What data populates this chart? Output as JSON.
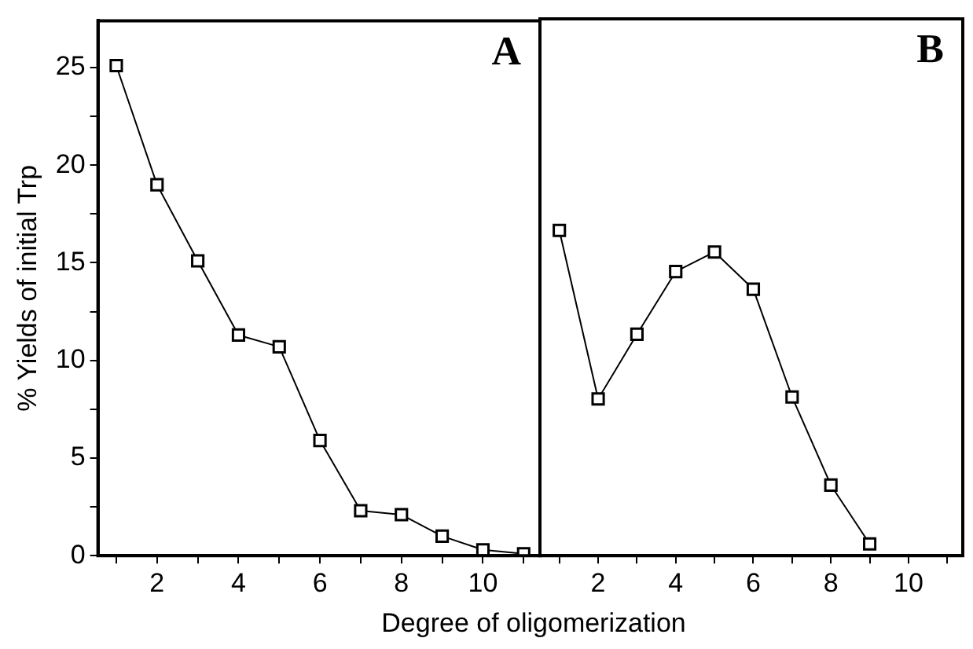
{
  "chart_data": [
    {
      "type": "line",
      "ylabel": "% Yields of initial Trp",
      "xlabel": "Degree of oligomerization",
      "annotations": [
        "A"
      ],
      "x": [
        1,
        2,
        3,
        4,
        5,
        6,
        7,
        8,
        9,
        10,
        11
      ],
      "series": [
        {
          "color": "#000000",
          "values": [
            25.1,
            19.0,
            15.1,
            11.3,
            10.7,
            5.9,
            2.3,
            2.1,
            1.0,
            0.3,
            0.1
          ]
        }
      ],
      "xlim": [
        0.55,
        11.4
      ],
      "xticks": [
        {
          "value": 1,
          "label": null
        },
        2,
        {
          "value": 3,
          "label": null
        },
        4,
        {
          "value": 5,
          "label": null
        },
        6,
        {
          "value": 7,
          "label": null
        },
        8,
        {
          "value": 9,
          "label": null
        },
        10,
        {
          "value": 11,
          "label": null
        }
      ],
      "ylim": [
        0,
        27.4
      ],
      "yticks": [
        0,
        {
          "value": 2.5,
          "label": null
        },
        5,
        {
          "value": 7.5,
          "label": null
        },
        10,
        {
          "value": 12.5,
          "label": null
        },
        15,
        {
          "value": 17.5,
          "label": null
        },
        20,
        {
          "value": 22.5,
          "label": null
        },
        25
      ],
      "marker": "square",
      "grid": false,
      "legend": false
    },
    {
      "type": "line",
      "annotations": [
        "B"
      ],
      "x": [
        1,
        2,
        3,
        4,
        5,
        6,
        7,
        8,
        9
      ],
      "series": [
        {
          "color": "#000000",
          "values": [
            16.6,
            8.0,
            11.3,
            14.5,
            15.5,
            13.6,
            8.1,
            3.6,
            0.6
          ]
        }
      ],
      "xlim": [
        0.5,
        11.4
      ],
      "xticks": [
        {
          "value": 1,
          "label": null
        },
        2,
        {
          "value": 3,
          "label": null
        },
        4,
        {
          "value": 5,
          "label": null
        },
        6,
        {
          "value": 7,
          "label": null
        },
        8,
        {
          "value": 9,
          "label": null
        },
        10,
        {
          "value": 11,
          "label": null
        }
      ],
      "ylim": [
        0,
        27.4
      ],
      "yticks": [
        0,
        {
          "value": 2.5,
          "label": null
        },
        5,
        {
          "value": 7.5,
          "label": null
        },
        10,
        {
          "value": 12.5,
          "label": null
        },
        15,
        {
          "value": 17.5,
          "label": null
        },
        20,
        {
          "value": 22.5,
          "label": null
        },
        25
      ],
      "tick_labels": "x",
      "marker": "square",
      "grid": false,
      "legend": false
    }
  ]
}
